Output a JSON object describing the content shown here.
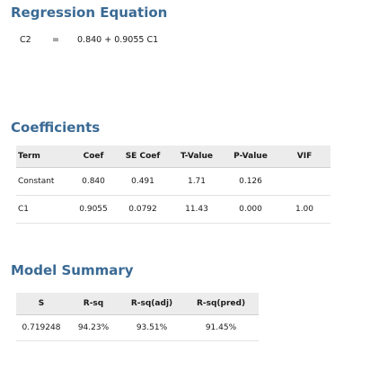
{
  "regression": {
    "title": "Regression Equation",
    "response": "C2",
    "equals": "=",
    "equation": "0.840 + 0.9055 C1"
  },
  "coefficients": {
    "title": "Coefficients",
    "headers": [
      "Term",
      "Coef",
      "SE Coef",
      "T-Value",
      "P-Value",
      "VIF"
    ],
    "rows": [
      [
        "Constant",
        "0.840",
        "0.491",
        "1.71",
        "0.126",
        ""
      ],
      [
        "C1",
        "0.9055",
        "0.0792",
        "11.43",
        "0.000",
        "1.00"
      ]
    ]
  },
  "model_summary": {
    "title": "Model Summary",
    "headers": [
      "S",
      "R-sq",
      "R-sq(adj)",
      "R-sq(pred)"
    ],
    "rows": [
      [
        "0.719248",
        "94.23%",
        "93.51%",
        "91.45%"
      ]
    ]
  },
  "colors": {
    "section_title": "#3a6a94",
    "header_bg": "#ececec"
  }
}
